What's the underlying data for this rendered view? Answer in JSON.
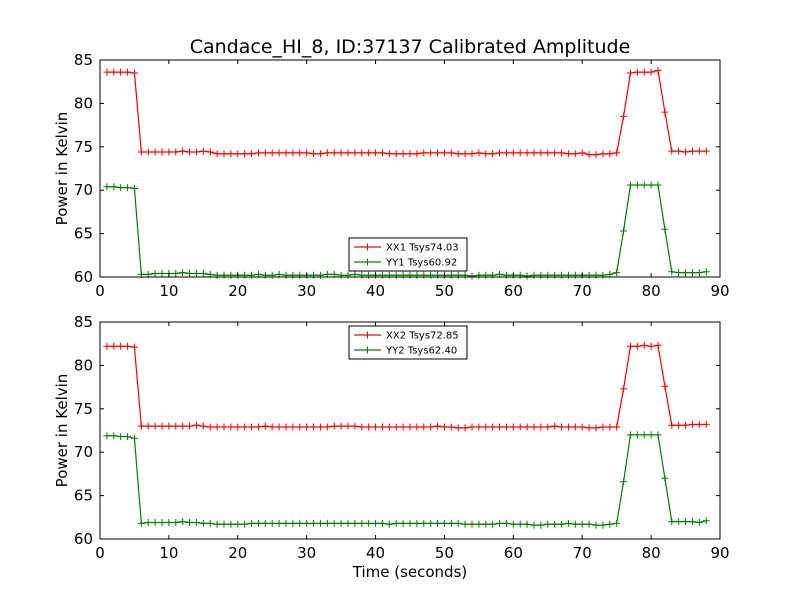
{
  "title": "Candace_HI_8, ID:37137 Calibrated Amplitude",
  "chart_data": [
    {
      "type": "line",
      "title": "",
      "xlabel": "",
      "ylabel": "Power in Kelvin",
      "xlim": [
        0,
        90
      ],
      "ylim": [
        60,
        85
      ],
      "xticks": [
        0,
        10,
        20,
        30,
        40,
        50,
        60,
        70,
        80,
        90
      ],
      "yticks": [
        60,
        65,
        70,
        75,
        80,
        85
      ],
      "grid": false,
      "legend_position": "lower-center",
      "x": [
        1,
        2,
        3,
        4,
        5,
        6,
        7,
        8,
        9,
        10,
        11,
        12,
        13,
        14,
        15,
        16,
        17,
        18,
        19,
        20,
        21,
        22,
        23,
        24,
        25,
        26,
        27,
        28,
        29,
        30,
        31,
        32,
        33,
        34,
        35,
        36,
        37,
        38,
        39,
        40,
        41,
        42,
        43,
        44,
        45,
        46,
        47,
        48,
        49,
        50,
        51,
        52,
        53,
        54,
        55,
        56,
        57,
        58,
        59,
        60,
        61,
        62,
        63,
        64,
        65,
        66,
        67,
        68,
        69,
        70,
        71,
        72,
        73,
        74,
        75,
        76,
        77,
        78,
        79,
        80,
        81,
        82,
        83,
        84,
        85,
        86,
        87,
        88
      ],
      "series": [
        {
          "name": "XX1 Tsys74.03",
          "color": "#ff0000",
          "values": [
            83.6,
            83.6,
            83.6,
            83.6,
            83.5,
            74.4,
            74.4,
            74.4,
            74.4,
            74.4,
            74.4,
            74.5,
            74.4,
            74.4,
            74.5,
            74.4,
            74.2,
            74.2,
            74.2,
            74.2,
            74.2,
            74.2,
            74.3,
            74.3,
            74.3,
            74.3,
            74.3,
            74.3,
            74.3,
            74.3,
            74.2,
            74.2,
            74.3,
            74.3,
            74.3,
            74.3,
            74.3,
            74.3,
            74.3,
            74.3,
            74.3,
            74.2,
            74.2,
            74.2,
            74.2,
            74.2,
            74.3,
            74.3,
            74.3,
            74.3,
            74.3,
            74.2,
            74.2,
            74.2,
            74.3,
            74.2,
            74.2,
            74.3,
            74.3,
            74.3,
            74.3,
            74.3,
            74.3,
            74.3,
            74.3,
            74.3,
            74.3,
            74.2,
            74.2,
            74.3,
            74.1,
            74.1,
            74.2,
            74.2,
            74.3,
            78.5,
            83.5,
            83.6,
            83.6,
            83.6,
            83.8,
            79.0,
            74.5,
            74.5,
            74.4,
            74.5,
            74.5,
            74.5
          ]
        },
        {
          "name": "YY1 Tsys60.92",
          "color": "#008000",
          "values": [
            70.4,
            70.4,
            70.3,
            70.3,
            70.2,
            60.3,
            60.3,
            60.4,
            60.4,
            60.4,
            60.4,
            60.5,
            60.4,
            60.4,
            60.4,
            60.3,
            60.2,
            60.2,
            60.2,
            60.2,
            60.2,
            60.2,
            60.3,
            60.2,
            60.2,
            60.3,
            60.2,
            60.2,
            60.2,
            60.2,
            60.2,
            60.2,
            60.3,
            60.3,
            60.2,
            60.2,
            60.3,
            60.2,
            60.2,
            60.2,
            60.2,
            60.2,
            60.2,
            60.2,
            60.2,
            60.2,
            60.2,
            60.2,
            60.2,
            60.2,
            60.2,
            60.2,
            60.2,
            60.1,
            60.2,
            60.2,
            60.2,
            60.3,
            60.2,
            60.2,
            60.2,
            60.1,
            60.2,
            60.2,
            60.2,
            60.2,
            60.2,
            60.2,
            60.2,
            60.2,
            60.2,
            60.2,
            60.2,
            60.3,
            60.5,
            65.3,
            70.6,
            70.6,
            70.6,
            70.6,
            70.6,
            65.5,
            60.6,
            60.5,
            60.5,
            60.5,
            60.5,
            60.6
          ]
        }
      ]
    },
    {
      "type": "line",
      "title": "",
      "xlabel": "Time (seconds)",
      "ylabel": "Power in Kelvin",
      "xlim": [
        0,
        90
      ],
      "ylim": [
        60,
        85
      ],
      "xticks": [
        0,
        10,
        20,
        30,
        40,
        50,
        60,
        70,
        80,
        90
      ],
      "yticks": [
        60,
        65,
        70,
        75,
        80,
        85
      ],
      "grid": false,
      "legend_position": "upper-center",
      "x": [
        1,
        2,
        3,
        4,
        5,
        6,
        7,
        8,
        9,
        10,
        11,
        12,
        13,
        14,
        15,
        16,
        17,
        18,
        19,
        20,
        21,
        22,
        23,
        24,
        25,
        26,
        27,
        28,
        29,
        30,
        31,
        32,
        33,
        34,
        35,
        36,
        37,
        38,
        39,
        40,
        41,
        42,
        43,
        44,
        45,
        46,
        47,
        48,
        49,
        50,
        51,
        52,
        53,
        54,
        55,
        56,
        57,
        58,
        59,
        60,
        61,
        62,
        63,
        64,
        65,
        66,
        67,
        68,
        69,
        70,
        71,
        72,
        73,
        74,
        75,
        76,
        77,
        78,
        79,
        80,
        81,
        82,
        83,
        84,
        85,
        86,
        87,
        88
      ],
      "series": [
        {
          "name": "XX2 Tsys72.85",
          "color": "#ff0000",
          "values": [
            82.2,
            82.2,
            82.2,
            82.2,
            82.1,
            73.0,
            73.0,
            73.0,
            73.0,
            73.0,
            73.0,
            73.0,
            73.0,
            73.1,
            73.0,
            72.9,
            72.9,
            72.9,
            72.9,
            72.9,
            72.9,
            72.9,
            72.9,
            73.0,
            72.9,
            72.9,
            72.9,
            72.9,
            72.9,
            72.9,
            72.9,
            72.9,
            72.9,
            73.0,
            73.0,
            73.0,
            73.0,
            72.9,
            72.9,
            72.9,
            72.9,
            72.9,
            72.9,
            72.9,
            72.9,
            72.9,
            72.9,
            72.9,
            73.0,
            72.9,
            72.9,
            72.8,
            72.8,
            72.9,
            72.9,
            72.9,
            72.9,
            72.9,
            72.9,
            72.9,
            72.9,
            72.9,
            72.9,
            72.9,
            72.9,
            73.0,
            72.9,
            72.9,
            72.9,
            72.9,
            72.8,
            72.8,
            72.9,
            72.9,
            72.9,
            77.3,
            82.2,
            82.2,
            82.3,
            82.2,
            82.3,
            77.6,
            73.1,
            73.1,
            73.1,
            73.2,
            73.2,
            73.2
          ]
        },
        {
          "name": "YY2 Tsys62.40",
          "color": "#008000",
          "values": [
            71.9,
            71.9,
            71.8,
            71.8,
            71.6,
            61.8,
            61.9,
            61.9,
            61.9,
            61.9,
            61.9,
            62.0,
            61.9,
            61.9,
            61.8,
            61.8,
            61.7,
            61.7,
            61.7,
            61.7,
            61.7,
            61.8,
            61.8,
            61.8,
            61.8,
            61.8,
            61.8,
            61.8,
            61.8,
            61.8,
            61.8,
            61.8,
            61.8,
            61.8,
            61.8,
            61.8,
            61.8,
            61.8,
            61.8,
            61.8,
            61.8,
            61.7,
            61.8,
            61.8,
            61.8,
            61.8,
            61.8,
            61.8,
            61.8,
            61.8,
            61.8,
            61.8,
            61.7,
            61.7,
            61.7,
            61.7,
            61.7,
            61.8,
            61.8,
            61.7,
            61.7,
            61.7,
            61.6,
            61.6,
            61.7,
            61.7,
            61.7,
            61.8,
            61.7,
            61.7,
            61.7,
            61.6,
            61.6,
            61.7,
            61.8,
            66.6,
            72.0,
            72.0,
            72.0,
            72.0,
            72.0,
            67.0,
            62.0,
            62.0,
            62.0,
            62.0,
            61.9,
            62.1
          ]
        }
      ]
    }
  ]
}
